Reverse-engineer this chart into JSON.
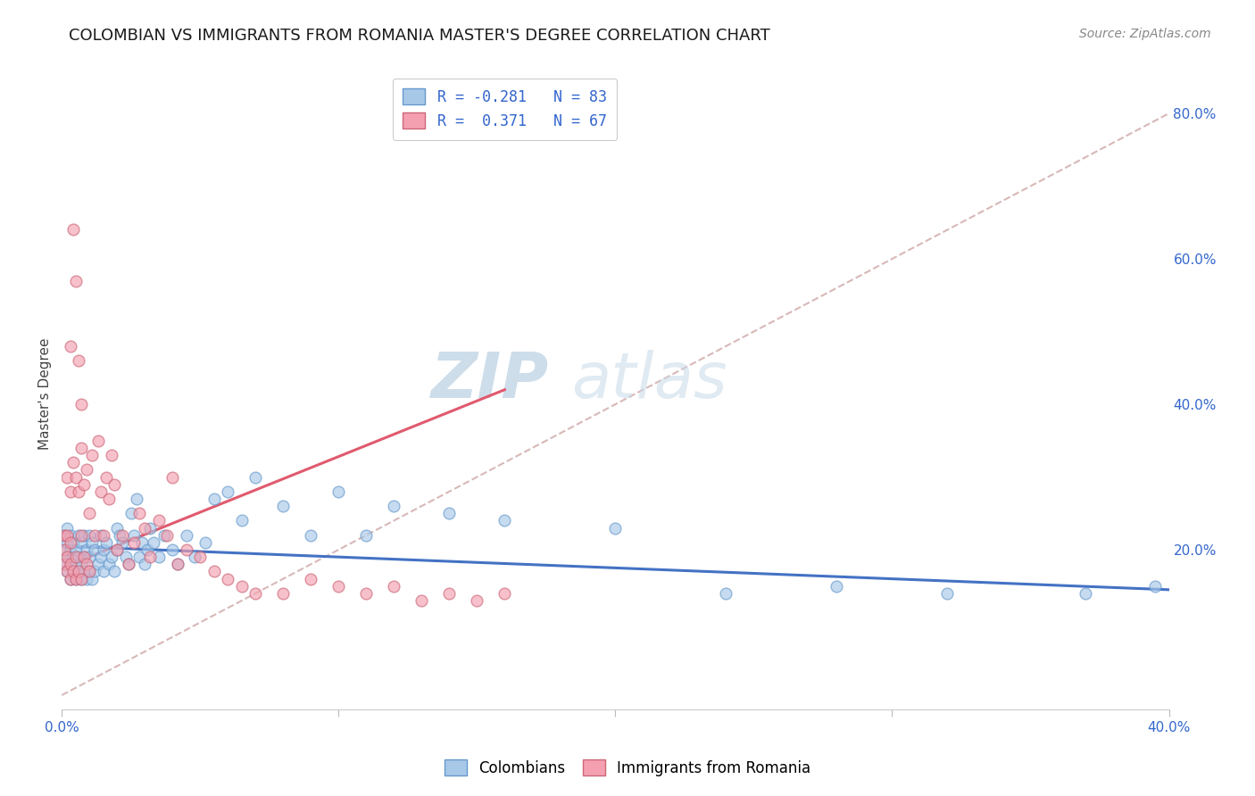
{
  "title": "COLOMBIAN VS IMMIGRANTS FROM ROMANIA MASTER'S DEGREE CORRELATION CHART",
  "source": "Source: ZipAtlas.com",
  "ylabel": "Master's Degree",
  "ytick_labels": [
    "20.0%",
    "40.0%",
    "60.0%",
    "80.0%"
  ],
  "ytick_values": [
    0.2,
    0.4,
    0.6,
    0.8
  ],
  "xlim": [
    0.0,
    0.4
  ],
  "ylim": [
    -0.02,
    0.85
  ],
  "legend_entries": [
    {
      "label": "R = -0.281   N = 83",
      "color": "#a8c8e8"
    },
    {
      "label": "R =  0.371   N = 67",
      "color": "#f4a0b0"
    }
  ],
  "legend_label_colombians": "Colombians",
  "legend_label_romania": "Immigrants from Romania",
  "color_blue": "#a8c8e8",
  "color_pink": "#f4a0b0",
  "color_blue_line": "#4472c4",
  "color_pink_line": "#e05a6e",
  "color_diag_line": "#d8b8b8",
  "watermark_zip": "ZIP",
  "watermark_atlas": "atlas",
  "blue_scatter_x": [
    0.001,
    0.001,
    0.001,
    0.002,
    0.002,
    0.002,
    0.002,
    0.003,
    0.003,
    0.003,
    0.003,
    0.004,
    0.004,
    0.004,
    0.005,
    0.005,
    0.005,
    0.006,
    0.006,
    0.006,
    0.007,
    0.007,
    0.007,
    0.008,
    0.008,
    0.008,
    0.009,
    0.009,
    0.01,
    0.01,
    0.01,
    0.011,
    0.011,
    0.012,
    0.012,
    0.013,
    0.014,
    0.014,
    0.015,
    0.015,
    0.016,
    0.017,
    0.018,
    0.019,
    0.02,
    0.02,
    0.021,
    0.022,
    0.023,
    0.024,
    0.025,
    0.026,
    0.027,
    0.028,
    0.029,
    0.03,
    0.031,
    0.032,
    0.033,
    0.035,
    0.037,
    0.04,
    0.042,
    0.045,
    0.048,
    0.052,
    0.055,
    0.06,
    0.065,
    0.07,
    0.08,
    0.09,
    0.1,
    0.11,
    0.12,
    0.14,
    0.16,
    0.2,
    0.24,
    0.28,
    0.32,
    0.37,
    0.395
  ],
  "blue_scatter_y": [
    0.18,
    0.2,
    0.22,
    0.17,
    0.19,
    0.21,
    0.23,
    0.16,
    0.18,
    0.2,
    0.22,
    0.17,
    0.19,
    0.21,
    0.16,
    0.18,
    0.2,
    0.17,
    0.19,
    0.22,
    0.16,
    0.18,
    0.21,
    0.17,
    0.19,
    0.22,
    0.16,
    0.2,
    0.17,
    0.19,
    0.22,
    0.16,
    0.21,
    0.17,
    0.2,
    0.18,
    0.19,
    0.22,
    0.17,
    0.2,
    0.21,
    0.18,
    0.19,
    0.17,
    0.2,
    0.23,
    0.22,
    0.21,
    0.19,
    0.18,
    0.25,
    0.22,
    0.27,
    0.19,
    0.21,
    0.18,
    0.2,
    0.23,
    0.21,
    0.19,
    0.22,
    0.2,
    0.18,
    0.22,
    0.19,
    0.21,
    0.27,
    0.28,
    0.24,
    0.3,
    0.26,
    0.22,
    0.28,
    0.22,
    0.26,
    0.25,
    0.24,
    0.23,
    0.14,
    0.15,
    0.14,
    0.14,
    0.15
  ],
  "pink_scatter_x": [
    0.001,
    0.001,
    0.001,
    0.002,
    0.002,
    0.002,
    0.002,
    0.003,
    0.003,
    0.003,
    0.003,
    0.004,
    0.004,
    0.005,
    0.005,
    0.005,
    0.006,
    0.006,
    0.007,
    0.007,
    0.007,
    0.008,
    0.008,
    0.009,
    0.009,
    0.01,
    0.01,
    0.011,
    0.012,
    0.013,
    0.014,
    0.015,
    0.016,
    0.017,
    0.018,
    0.019,
    0.02,
    0.022,
    0.024,
    0.026,
    0.028,
    0.03,
    0.032,
    0.035,
    0.038,
    0.04,
    0.042,
    0.045,
    0.05,
    0.055,
    0.06,
    0.065,
    0.07,
    0.08,
    0.09,
    0.1,
    0.11,
    0.12,
    0.13,
    0.14,
    0.15,
    0.16,
    0.003,
    0.004,
    0.005,
    0.006,
    0.007
  ],
  "pink_scatter_y": [
    0.18,
    0.2,
    0.22,
    0.17,
    0.19,
    0.22,
    0.3,
    0.16,
    0.18,
    0.21,
    0.28,
    0.17,
    0.32,
    0.16,
    0.19,
    0.3,
    0.17,
    0.28,
    0.16,
    0.22,
    0.34,
    0.19,
    0.29,
    0.18,
    0.31,
    0.17,
    0.25,
    0.33,
    0.22,
    0.35,
    0.28,
    0.22,
    0.3,
    0.27,
    0.33,
    0.29,
    0.2,
    0.22,
    0.18,
    0.21,
    0.25,
    0.23,
    0.19,
    0.24,
    0.22,
    0.3,
    0.18,
    0.2,
    0.19,
    0.17,
    0.16,
    0.15,
    0.14,
    0.14,
    0.16,
    0.15,
    0.14,
    0.15,
    0.13,
    0.14,
    0.13,
    0.14,
    0.48,
    0.64,
    0.57,
    0.46,
    0.4
  ],
  "blue_line_x": [
    0.0,
    0.4
  ],
  "blue_line_y": [
    0.205,
    0.145
  ],
  "pink_line_x": [
    0.0,
    0.16
  ],
  "pink_line_y": [
    0.175,
    0.42
  ],
  "diag_line_x": [
    0.0,
    0.4
  ],
  "diag_line_y": [
    0.0,
    0.8
  ],
  "grid_color": "#e0dede",
  "title_fontsize": 13,
  "axis_label_fontsize": 11,
  "tick_fontsize": 11,
  "source_fontsize": 10,
  "legend_fontsize": 12,
  "scatter_size": 85,
  "scatter_alpha": 0.65,
  "scatter_linewidth": 1.0,
  "scatter_edgecolor_blue": "#6699cc",
  "scatter_edgecolor_pink": "#cc6677"
}
